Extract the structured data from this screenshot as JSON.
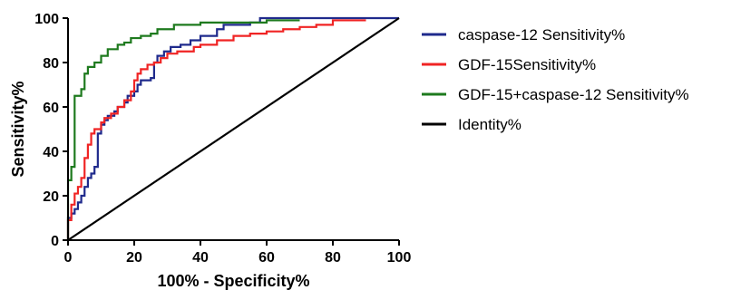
{
  "chart_data": {
    "type": "line",
    "xlabel": "100% - Specificity%",
    "ylabel": "Sensitivity%",
    "xlim": [
      0,
      100
    ],
    "ylim": [
      0,
      100
    ],
    "x_ticks": [
      "0",
      "20",
      "40",
      "60",
      "80",
      "100"
    ],
    "y_ticks": [
      "0",
      "20",
      "40",
      "60",
      "80",
      "100"
    ],
    "grid": false,
    "legend_position": "right",
    "series": [
      {
        "name": "caspase-12 Sensitivity%",
        "color": "#1f2a8c",
        "points": [
          [
            0,
            0
          ],
          [
            0,
            10
          ],
          [
            1,
            10
          ],
          [
            1,
            12
          ],
          [
            2,
            12
          ],
          [
            2,
            14
          ],
          [
            3,
            14
          ],
          [
            3,
            17
          ],
          [
            4,
            17
          ],
          [
            4,
            20
          ],
          [
            5,
            20
          ],
          [
            5,
            24
          ],
          [
            6,
            24
          ],
          [
            6,
            28
          ],
          [
            7,
            28
          ],
          [
            7,
            30
          ],
          [
            8,
            30
          ],
          [
            8,
            33
          ],
          [
            9,
            33
          ],
          [
            9,
            40
          ],
          [
            9,
            48
          ],
          [
            10,
            48
          ],
          [
            10,
            52
          ],
          [
            11,
            52
          ],
          [
            11,
            54
          ],
          [
            12,
            54
          ],
          [
            12,
            56
          ],
          [
            14,
            56
          ],
          [
            14,
            58
          ],
          [
            15,
            58
          ],
          [
            15,
            60
          ],
          [
            17,
            60
          ],
          [
            17,
            62
          ],
          [
            18,
            62
          ],
          [
            18,
            65
          ],
          [
            20,
            65
          ],
          [
            20,
            67
          ],
          [
            21,
            67
          ],
          [
            21,
            70
          ],
          [
            22,
            70
          ],
          [
            22,
            72
          ],
          [
            25,
            72
          ],
          [
            25,
            73
          ],
          [
            26,
            73
          ],
          [
            26,
            80
          ],
          [
            27,
            80
          ],
          [
            27,
            83
          ],
          [
            29,
            83
          ],
          [
            29,
            85
          ],
          [
            31,
            85
          ],
          [
            31,
            87
          ],
          [
            34,
            87
          ],
          [
            34,
            88
          ],
          [
            37,
            88
          ],
          [
            37,
            90
          ],
          [
            40,
            90
          ],
          [
            40,
            92
          ],
          [
            45,
            92
          ],
          [
            45,
            95
          ],
          [
            47,
            95
          ],
          [
            47,
            97
          ],
          [
            55,
            97
          ],
          [
            55,
            98
          ],
          [
            58,
            98
          ],
          [
            58,
            100
          ],
          [
            100,
            100
          ]
        ]
      },
      {
        "name": "GDF-15Sensitivity%",
        "color": "#f02424",
        "points": [
          [
            0,
            0
          ],
          [
            0,
            9
          ],
          [
            1,
            9
          ],
          [
            1,
            16
          ],
          [
            2,
            16
          ],
          [
            2,
            21
          ],
          [
            3,
            21
          ],
          [
            3,
            24
          ],
          [
            4,
            24
          ],
          [
            4,
            28
          ],
          [
            5,
            28
          ],
          [
            5,
            37
          ],
          [
            6,
            37
          ],
          [
            6,
            43
          ],
          [
            7,
            43
          ],
          [
            7,
            48
          ],
          [
            8,
            48
          ],
          [
            8,
            50
          ],
          [
            10,
            50
          ],
          [
            10,
            53
          ],
          [
            11,
            53
          ],
          [
            11,
            55
          ],
          [
            13,
            55
          ],
          [
            13,
            57
          ],
          [
            15,
            57
          ],
          [
            15,
            60
          ],
          [
            17,
            60
          ],
          [
            17,
            63
          ],
          [
            19,
            63
          ],
          [
            19,
            67
          ],
          [
            20,
            67
          ],
          [
            20,
            72
          ],
          [
            21,
            72
          ],
          [
            21,
            75
          ],
          [
            22,
            75
          ],
          [
            22,
            77
          ],
          [
            24,
            77
          ],
          [
            24,
            79
          ],
          [
            26,
            79
          ],
          [
            26,
            80
          ],
          [
            28,
            80
          ],
          [
            28,
            82
          ],
          [
            30,
            82
          ],
          [
            30,
            84
          ],
          [
            33,
            84
          ],
          [
            33,
            85
          ],
          [
            38,
            85
          ],
          [
            38,
            87
          ],
          [
            40,
            87
          ],
          [
            40,
            88
          ],
          [
            45,
            88
          ],
          [
            45,
            90
          ],
          [
            50,
            90
          ],
          [
            50,
            92
          ],
          [
            55,
            92
          ],
          [
            55,
            93
          ],
          [
            60,
            93
          ],
          [
            60,
            94
          ],
          [
            65,
            94
          ],
          [
            65,
            95
          ],
          [
            70,
            95
          ],
          [
            70,
            96
          ],
          [
            75,
            96
          ],
          [
            75,
            97
          ],
          [
            80,
            97
          ],
          [
            80,
            99
          ],
          [
            90,
            99
          ]
        ]
      },
      {
        "name": "GDF-15+caspase-12 Sensitivity%",
        "color": "#1e7a1e",
        "points": [
          [
            0,
            0
          ],
          [
            0,
            27
          ],
          [
            1,
            27
          ],
          [
            1,
            33
          ],
          [
            2,
            33
          ],
          [
            2,
            50
          ],
          [
            2,
            65
          ],
          [
            4,
            65
          ],
          [
            4,
            68
          ],
          [
            5,
            68
          ],
          [
            5,
            75
          ],
          [
            6,
            75
          ],
          [
            6,
            78
          ],
          [
            8,
            78
          ],
          [
            8,
            80
          ],
          [
            10,
            80
          ],
          [
            10,
            83
          ],
          [
            12,
            83
          ],
          [
            12,
            86
          ],
          [
            15,
            86
          ],
          [
            15,
            88
          ],
          [
            17,
            88
          ],
          [
            17,
            89
          ],
          [
            19,
            89
          ],
          [
            19,
            91
          ],
          [
            22,
            91
          ],
          [
            22,
            92
          ],
          [
            25,
            92
          ],
          [
            25,
            93
          ],
          [
            27,
            93
          ],
          [
            27,
            95
          ],
          [
            32,
            95
          ],
          [
            32,
            97
          ],
          [
            40,
            97
          ],
          [
            40,
            98
          ],
          [
            60,
            98
          ],
          [
            60,
            99
          ],
          [
            70,
            99
          ]
        ]
      },
      {
        "name": "Identity%",
        "color": "#000000",
        "points": [
          [
            0,
            0
          ],
          [
            100,
            100
          ]
        ]
      }
    ]
  }
}
